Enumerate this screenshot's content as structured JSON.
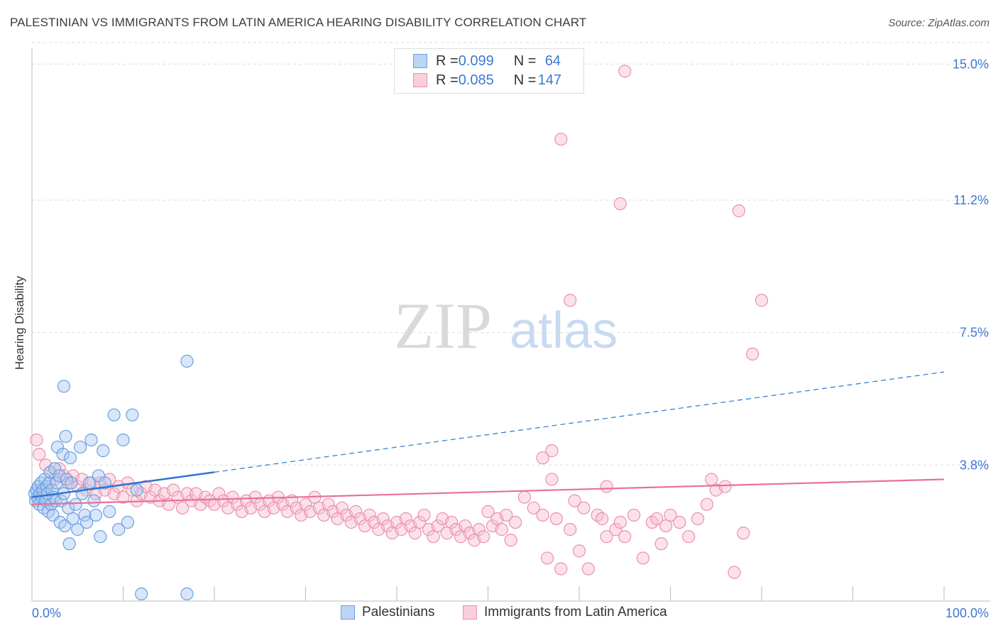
{
  "title": "PALESTINIAN VS IMMIGRANTS FROM LATIN AMERICA HEARING DISABILITY CORRELATION CHART",
  "source": "Source: ZipAtlas.com",
  "watermark": {
    "zip": "ZIP",
    "atlas": "atlas"
  },
  "legend": {
    "row1": {
      "r_label": "R = ",
      "r_value": "0.099",
      "n_label": "N = ",
      "n_value": "64"
    },
    "row2": {
      "r_label": "R = ",
      "r_value": "0.085",
      "n_label": "N = ",
      "n_value": "147"
    }
  },
  "bottom_legend": {
    "series1": "Palestinians",
    "series2": "Immigrants from Latin America"
  },
  "colors": {
    "blue_fill": "#aac8f2",
    "blue_stroke": "#6a9ee0",
    "blue_line": "#2f74d0",
    "pink_fill": "#f6bfd0",
    "pink_stroke": "#ec8fae",
    "pink_line": "#e8709a",
    "tick_text": "#3b78d6",
    "grid": "#dddddd"
  },
  "chart_data": {
    "type": "scatter",
    "title": "PALESTINIAN VS IMMIGRANTS FROM LATIN AMERICA HEARING DISABILITY CORRELATION CHART",
    "xlabel": "",
    "ylabel": "Hearing Disability",
    "xlim": [
      0,
      100
    ],
    "ylim": [
      0,
      15.6
    ],
    "x_tick_labels": [
      "0.0%",
      "100.0%"
    ],
    "y_ticks": [
      3.8,
      7.5,
      11.2,
      15.0
    ],
    "y_tick_labels": [
      "3.8%",
      "7.5%",
      "11.2%",
      "15.0%"
    ],
    "grid": true,
    "legend_placement": "top-center",
    "series": [
      {
        "name": "Palestinians",
        "r": 0.099,
        "n": 64,
        "trend": {
          "x0": 0,
          "y0": 2.9,
          "x1": 100,
          "y1": 6.4,
          "solid_until": 20
        },
        "points": [
          [
            0.3,
            3.0
          ],
          [
            0.4,
            2.8
          ],
          [
            0.5,
            3.1
          ],
          [
            0.6,
            2.9
          ],
          [
            0.7,
            3.2
          ],
          [
            0.8,
            2.7
          ],
          [
            0.9,
            3.0
          ],
          [
            1.0,
            3.3
          ],
          [
            1.1,
            2.9
          ],
          [
            1.2,
            3.1
          ],
          [
            1.3,
            2.6
          ],
          [
            1.4,
            3.4
          ],
          [
            1.5,
            2.8
          ],
          [
            1.6,
            3.2
          ],
          [
            1.7,
            3.0
          ],
          [
            1.8,
            2.5
          ],
          [
            1.9,
            3.3
          ],
          [
            2.0,
            3.6
          ],
          [
            2.1,
            2.7
          ],
          [
            2.2,
            3.1
          ],
          [
            2.3,
            2.4
          ],
          [
            2.4,
            2.9
          ],
          [
            2.5,
            3.7
          ],
          [
            2.6,
            2.8
          ],
          [
            2.7,
            3.3
          ],
          [
            2.8,
            4.3
          ],
          [
            3.0,
            3.5
          ],
          [
            3.1,
            2.2
          ],
          [
            3.2,
            2.8
          ],
          [
            3.4,
            4.1
          ],
          [
            3.5,
            3.0
          ],
          [
            3.6,
            2.1
          ],
          [
            3.7,
            4.6
          ],
          [
            3.8,
            3.4
          ],
          [
            4.0,
            2.6
          ],
          [
            4.1,
            1.6
          ],
          [
            4.2,
            4.0
          ],
          [
            4.3,
            3.3
          ],
          [
            4.5,
            2.3
          ],
          [
            4.8,
            2.7
          ],
          [
            5.0,
            2.0
          ],
          [
            5.3,
            4.3
          ],
          [
            5.5,
            3.0
          ],
          [
            5.8,
            2.4
          ],
          [
            6.0,
            2.2
          ],
          [
            6.3,
            3.3
          ],
          [
            6.5,
            4.5
          ],
          [
            6.8,
            2.8
          ],
          [
            7.0,
            2.4
          ],
          [
            7.3,
            3.5
          ],
          [
            7.5,
            1.8
          ],
          [
            7.8,
            4.2
          ],
          [
            8.0,
            3.3
          ],
          [
            8.5,
            2.5
          ],
          [
            9.0,
            5.2
          ],
          [
            9.5,
            2.0
          ],
          [
            10.0,
            4.5
          ],
          [
            10.5,
            2.2
          ],
          [
            11.0,
            5.2
          ],
          [
            11.5,
            3.1
          ],
          [
            12.0,
            0.2
          ],
          [
            3.5,
            6.0
          ],
          [
            17.0,
            0.2
          ],
          [
            17.0,
            6.7
          ]
        ]
      },
      {
        "name": "Immigrants from Latin America",
        "r": 0.085,
        "n": 147,
        "trend": {
          "x0": 0,
          "y0": 2.7,
          "x1": 100,
          "y1": 3.4
        },
        "points": [
          [
            0.5,
            4.5
          ],
          [
            0.8,
            4.1
          ],
          [
            1.5,
            3.8
          ],
          [
            2.0,
            3.6
          ],
          [
            2.5,
            3.4
          ],
          [
            3.0,
            3.7
          ],
          [
            3.5,
            3.5
          ],
          [
            4.0,
            3.3
          ],
          [
            4.5,
            3.5
          ],
          [
            5.0,
            3.2
          ],
          [
            5.5,
            3.4
          ],
          [
            6.0,
            3.1
          ],
          [
            6.5,
            3.3
          ],
          [
            7.0,
            3.0
          ],
          [
            7.5,
            3.3
          ],
          [
            8.0,
            3.1
          ],
          [
            8.5,
            3.4
          ],
          [
            9.0,
            3.0
          ],
          [
            9.5,
            3.2
          ],
          [
            10.0,
            2.9
          ],
          [
            10.5,
            3.3
          ],
          [
            11.0,
            3.1
          ],
          [
            11.5,
            2.8
          ],
          [
            12.0,
            3.0
          ],
          [
            12.5,
            3.2
          ],
          [
            13.0,
            2.9
          ],
          [
            13.5,
            3.1
          ],
          [
            14.0,
            2.8
          ],
          [
            14.5,
            3.0
          ],
          [
            15.0,
            2.7
          ],
          [
            15.5,
            3.1
          ],
          [
            16.0,
            2.9
          ],
          [
            16.5,
            2.6
          ],
          [
            17.0,
            3.0
          ],
          [
            17.5,
            2.8
          ],
          [
            18.0,
            3.0
          ],
          [
            18.5,
            2.7
          ],
          [
            19.0,
            2.9
          ],
          [
            19.5,
            2.8
          ],
          [
            20.0,
            2.7
          ],
          [
            20.5,
            3.0
          ],
          [
            21.0,
            2.8
          ],
          [
            21.5,
            2.6
          ],
          [
            22.0,
            2.9
          ],
          [
            22.5,
            2.7
          ],
          [
            23.0,
            2.5
          ],
          [
            23.5,
            2.8
          ],
          [
            24.0,
            2.6
          ],
          [
            24.5,
            2.9
          ],
          [
            25.0,
            2.7
          ],
          [
            25.5,
            2.5
          ],
          [
            26.0,
            2.8
          ],
          [
            26.5,
            2.6
          ],
          [
            27.0,
            2.9
          ],
          [
            27.5,
            2.7
          ],
          [
            28.0,
            2.5
          ],
          [
            28.5,
            2.8
          ],
          [
            29.0,
            2.6
          ],
          [
            29.5,
            2.4
          ],
          [
            30.0,
            2.7
          ],
          [
            30.5,
            2.5
          ],
          [
            31.0,
            2.9
          ],
          [
            31.5,
            2.6
          ],
          [
            32.0,
            2.4
          ],
          [
            32.5,
            2.7
          ],
          [
            33.0,
            2.5
          ],
          [
            33.5,
            2.3
          ],
          [
            34.0,
            2.6
          ],
          [
            34.5,
            2.4
          ],
          [
            35.0,
            2.2
          ],
          [
            35.5,
            2.5
          ],
          [
            36.0,
            2.3
          ],
          [
            36.5,
            2.1
          ],
          [
            37.0,
            2.4
          ],
          [
            37.5,
            2.2
          ],
          [
            38.0,
            2.0
          ],
          [
            38.5,
            2.3
          ],
          [
            39.0,
            2.1
          ],
          [
            39.5,
            1.9
          ],
          [
            40.0,
            2.2
          ],
          [
            40.5,
            2.0
          ],
          [
            41.0,
            2.3
          ],
          [
            41.5,
            2.1
          ],
          [
            42.0,
            1.9
          ],
          [
            42.5,
            2.2
          ],
          [
            43.0,
            2.4
          ],
          [
            43.5,
            2.0
          ],
          [
            44.0,
            1.8
          ],
          [
            44.5,
            2.1
          ],
          [
            45.0,
            2.3
          ],
          [
            45.5,
            1.9
          ],
          [
            46.0,
            2.2
          ],
          [
            46.5,
            2.0
          ],
          [
            47.0,
            1.8
          ],
          [
            47.5,
            2.1
          ],
          [
            48.0,
            1.9
          ],
          [
            48.5,
            1.7
          ],
          [
            49.0,
            2.0
          ],
          [
            49.5,
            1.8
          ],
          [
            50.0,
            2.5
          ],
          [
            50.5,
            2.1
          ],
          [
            51.0,
            2.3
          ],
          [
            51.5,
            2.0
          ],
          [
            52.0,
            2.4
          ],
          [
            52.5,
            1.7
          ],
          [
            53.0,
            2.2
          ],
          [
            54.0,
            2.9
          ],
          [
            55.0,
            2.6
          ],
          [
            56.0,
            2.4
          ],
          [
            56.5,
            1.2
          ],
          [
            57.0,
            3.4
          ],
          [
            57.5,
            2.3
          ],
          [
            58.0,
            0.9
          ],
          [
            59.0,
            2.0
          ],
          [
            59.5,
            2.8
          ],
          [
            60.0,
            1.4
          ],
          [
            60.5,
            2.6
          ],
          [
            61.0,
            0.9
          ],
          [
            62.0,
            2.4
          ],
          [
            62.5,
            2.3
          ],
          [
            63.0,
            1.8
          ],
          [
            64.0,
            2.0
          ],
          [
            64.5,
            2.2
          ],
          [
            65.0,
            1.8
          ],
          [
            66.0,
            2.4
          ],
          [
            67.0,
            1.2
          ],
          [
            68.0,
            2.2
          ],
          [
            68.5,
            2.3
          ],
          [
            69.0,
            1.6
          ],
          [
            69.5,
            2.1
          ],
          [
            70.0,
            2.4
          ],
          [
            71.0,
            2.2
          ],
          [
            72.0,
            1.8
          ],
          [
            73.0,
            2.3
          ],
          [
            74.0,
            2.7
          ],
          [
            74.5,
            3.4
          ],
          [
            75.0,
            3.1
          ],
          [
            76.0,
            3.2
          ],
          [
            77.0,
            0.8
          ],
          [
            78.0,
            1.9
          ],
          [
            56.0,
            4.0
          ],
          [
            57.0,
            4.2
          ],
          [
            59.0,
            8.4
          ],
          [
            58.0,
            12.9
          ],
          [
            63.0,
            3.2
          ],
          [
            64.5,
            11.1
          ],
          [
            65.0,
            14.8
          ],
          [
            77.5,
            10.9
          ],
          [
            79.0,
            6.9
          ],
          [
            80.0,
            8.4
          ]
        ]
      }
    ]
  }
}
